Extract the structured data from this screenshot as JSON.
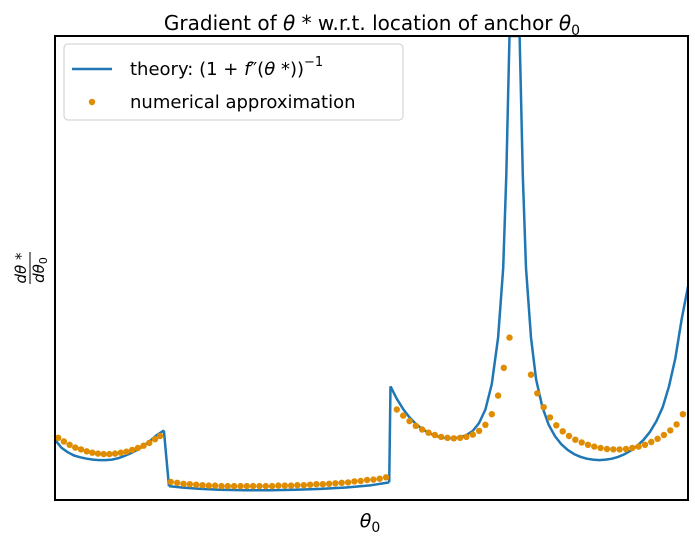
{
  "chart_data": {
    "type": "line",
    "title_prefix": "Gradient of ",
    "title_var": "θ",
    "title_star": " *",
    "title_mid": "  w.r.t. location of anchor ",
    "title_var2": "θ",
    "title_sub": "0",
    "xlabel_var": "θ",
    "xlabel_sub": "0",
    "ylabel_num": "dθ *",
    "ylabel_den": "dθ",
    "ylabel_den_sub": "0",
    "grid": false,
    "xticks": false,
    "yticks": false,
    "legend_position": "top-left",
    "xlim": [
      0,
      1
    ],
    "ylim": [
      0,
      1
    ],
    "series": [
      {
        "name": "theory: (1 + f″(θ * ))⁻¹",
        "legend_prefix": "theory: (1 + ",
        "legend_f": "f",
        "legend_prime": "″",
        "legend_open": "(",
        "legend_var": "θ",
        "legend_star": " *",
        "legend_close": "))",
        "legend_sup": "−1",
        "style": "line",
        "color": "#1f77b4",
        "segments": [
          [
            [
              0.0,
              0.13
            ],
            [
              0.01,
              0.113
            ],
            [
              0.02,
              0.103
            ],
            [
              0.03,
              0.096
            ],
            [
              0.04,
              0.092
            ],
            [
              0.05,
              0.089
            ],
            [
              0.06,
              0.087
            ],
            [
              0.07,
              0.086
            ],
            [
              0.08,
              0.086
            ],
            [
              0.09,
              0.087
            ],
            [
              0.1,
              0.09
            ],
            [
              0.11,
              0.095
            ],
            [
              0.12,
              0.101
            ],
            [
              0.13,
              0.108
            ],
            [
              0.14,
              0.117
            ],
            [
              0.15,
              0.127
            ],
            [
              0.16,
              0.139
            ],
            [
              0.172,
              0.15
            ]
          ],
          [
            [
              0.18,
              0.03
            ],
            [
              0.2,
              0.027
            ],
            [
              0.23,
              0.024
            ],
            [
              0.26,
              0.022
            ],
            [
              0.3,
              0.021
            ],
            [
              0.34,
              0.021
            ],
            [
              0.38,
              0.022
            ],
            [
              0.42,
              0.024
            ],
            [
              0.46,
              0.027
            ],
            [
              0.5,
              0.032
            ],
            [
              0.528,
              0.038
            ]
          ],
          [
            [
              0.53,
              0.245
            ],
            [
              0.54,
              0.218
            ],
            [
              0.55,
              0.196
            ],
            [
              0.56,
              0.178
            ],
            [
              0.57,
              0.164
            ],
            [
              0.58,
              0.153
            ],
            [
              0.59,
              0.145
            ],
            [
              0.6,
              0.139
            ],
            [
              0.61,
              0.135
            ],
            [
              0.62,
              0.133
            ],
            [
              0.63,
              0.133
            ],
            [
              0.64,
              0.135
            ],
            [
              0.65,
              0.14
            ],
            [
              0.66,
              0.149
            ],
            [
              0.67,
              0.166
            ],
            [
              0.68,
              0.195
            ],
            [
              0.69,
              0.25
            ],
            [
              0.7,
              0.35
            ],
            [
              0.708,
              0.5
            ],
            [
              0.713,
              0.7
            ],
            [
              0.716,
              0.88
            ],
            [
              0.718,
              1.0
            ]
          ],
          [
            [
              0.734,
              1.0
            ],
            [
              0.736,
              0.88
            ],
            [
              0.739,
              0.7
            ],
            [
              0.744,
              0.5
            ],
            [
              0.752,
              0.35
            ],
            [
              0.76,
              0.26
            ],
            [
              0.77,
              0.2
            ],
            [
              0.78,
              0.162
            ],
            [
              0.79,
              0.137
            ],
            [
              0.8,
              0.12
            ],
            [
              0.81,
              0.108
            ],
            [
              0.82,
              0.099
            ],
            [
              0.83,
              0.093
            ],
            [
              0.84,
              0.089
            ],
            [
              0.85,
              0.087
            ],
            [
              0.86,
              0.086
            ],
            [
              0.87,
              0.087
            ],
            [
              0.88,
              0.089
            ],
            [
              0.89,
              0.093
            ],
            [
              0.9,
              0.099
            ],
            [
              0.91,
              0.107
            ],
            [
              0.92,
              0.117
            ],
            [
              0.93,
              0.13
            ],
            [
              0.94,
              0.147
            ],
            [
              0.95,
              0.17
            ],
            [
              0.96,
              0.2
            ],
            [
              0.97,
              0.245
            ],
            [
              0.98,
              0.305
            ],
            [
              0.99,
              0.39
            ],
            [
              1.0,
              0.46
            ]
          ]
        ]
      },
      {
        "name": "numerical approximation",
        "style": "markers",
        "color": "#e08c00",
        "points": [
          [
            0.005,
            0.134
          ],
          [
            0.014,
            0.126
          ],
          [
            0.023,
            0.119
          ],
          [
            0.032,
            0.113
          ],
          [
            0.041,
            0.109
          ],
          [
            0.05,
            0.105
          ],
          [
            0.059,
            0.102
          ],
          [
            0.068,
            0.1
          ],
          [
            0.077,
            0.099
          ],
          [
            0.086,
            0.099
          ],
          [
            0.095,
            0.1
          ],
          [
            0.104,
            0.102
          ],
          [
            0.113,
            0.104
          ],
          [
            0.122,
            0.108
          ],
          [
            0.131,
            0.112
          ],
          [
            0.14,
            0.117
          ],
          [
            0.149,
            0.123
          ],
          [
            0.158,
            0.131
          ],
          [
            0.166,
            0.138
          ],
          [
            0.183,
            0.039
          ],
          [
            0.193,
            0.037
          ],
          [
            0.203,
            0.035
          ],
          [
            0.213,
            0.034
          ],
          [
            0.223,
            0.033
          ],
          [
            0.233,
            0.032
          ],
          [
            0.243,
            0.031
          ],
          [
            0.253,
            0.031
          ],
          [
            0.263,
            0.03
          ],
          [
            0.273,
            0.03
          ],
          [
            0.283,
            0.03
          ],
          [
            0.293,
            0.03
          ],
          [
            0.303,
            0.03
          ],
          [
            0.313,
            0.03
          ],
          [
            0.323,
            0.03
          ],
          [
            0.333,
            0.03
          ],
          [
            0.343,
            0.03
          ],
          [
            0.353,
            0.031
          ],
          [
            0.363,
            0.031
          ],
          [
            0.373,
            0.031
          ],
          [
            0.383,
            0.032
          ],
          [
            0.393,
            0.032
          ],
          [
            0.403,
            0.033
          ],
          [
            0.413,
            0.034
          ],
          [
            0.423,
            0.034
          ],
          [
            0.433,
            0.035
          ],
          [
            0.443,
            0.036
          ],
          [
            0.453,
            0.037
          ],
          [
            0.463,
            0.038
          ],
          [
            0.473,
            0.04
          ],
          [
            0.483,
            0.041
          ],
          [
            0.493,
            0.043
          ],
          [
            0.503,
            0.044
          ],
          [
            0.513,
            0.046
          ],
          [
            0.523,
            0.049
          ],
          [
            0.54,
            0.195
          ],
          [
            0.55,
            0.182
          ],
          [
            0.56,
            0.17
          ],
          [
            0.57,
            0.16
          ],
          [
            0.58,
            0.152
          ],
          [
            0.59,
            0.145
          ],
          [
            0.6,
            0.14
          ],
          [
            0.61,
            0.136
          ],
          [
            0.62,
            0.134
          ],
          [
            0.63,
            0.133
          ],
          [
            0.64,
            0.134
          ],
          [
            0.65,
            0.136
          ],
          [
            0.66,
            0.141
          ],
          [
            0.67,
            0.149
          ],
          [
            0.68,
            0.162
          ],
          [
            0.69,
            0.185
          ],
          [
            0.7,
            0.225
          ],
          [
            0.709,
            0.285
          ],
          [
            0.718,
            0.35
          ],
          [
            0.752,
            0.27
          ],
          [
            0.762,
            0.23
          ],
          [
            0.772,
            0.2
          ],
          [
            0.782,
            0.178
          ],
          [
            0.792,
            0.161
          ],
          [
            0.802,
            0.148
          ],
          [
            0.812,
            0.138
          ],
          [
            0.822,
            0.13
          ],
          [
            0.832,
            0.124
          ],
          [
            0.842,
            0.119
          ],
          [
            0.852,
            0.115
          ],
          [
            0.862,
            0.112
          ],
          [
            0.872,
            0.11
          ],
          [
            0.882,
            0.109
          ],
          [
            0.892,
            0.109
          ],
          [
            0.902,
            0.11
          ],
          [
            0.912,
            0.112
          ],
          [
            0.922,
            0.115
          ],
          [
            0.932,
            0.119
          ],
          [
            0.942,
            0.125
          ],
          [
            0.952,
            0.132
          ],
          [
            0.962,
            0.14
          ],
          [
            0.972,
            0.15
          ],
          [
            0.982,
            0.163
          ],
          [
            0.992,
            0.185
          ]
        ]
      }
    ]
  }
}
